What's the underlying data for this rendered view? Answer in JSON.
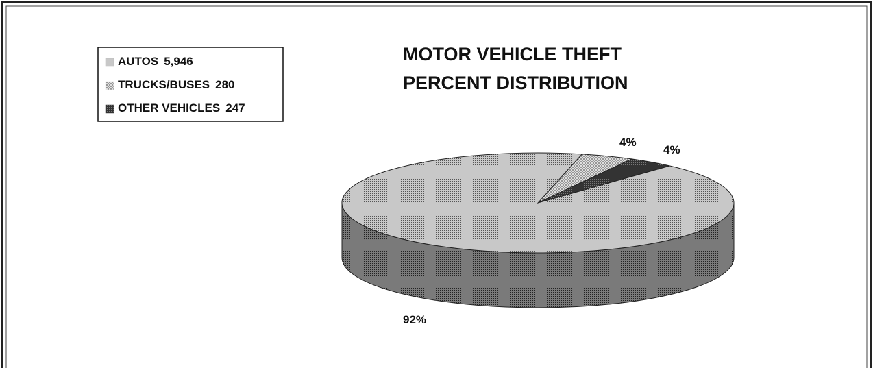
{
  "chart_data": {
    "type": "pie3d",
    "title_lines": [
      "MOTOR VEHICLE THEFT",
      "PERCENT  DISTRIBUTION"
    ],
    "categories": [
      "AUTOS",
      "TRUCKS/BUSES",
      "OTHER VEHICLES"
    ],
    "values": [
      5946,
      280,
      247
    ],
    "value_labels": [
      "5,946",
      "280",
      "247"
    ],
    "percent": [
      92,
      4,
      4
    ],
    "percent_labels": [
      "92%",
      "4%",
      "4%"
    ],
    "colors": [
      "#b8b8b8",
      "#e0e0e0",
      "#3a3a3a"
    ]
  }
}
